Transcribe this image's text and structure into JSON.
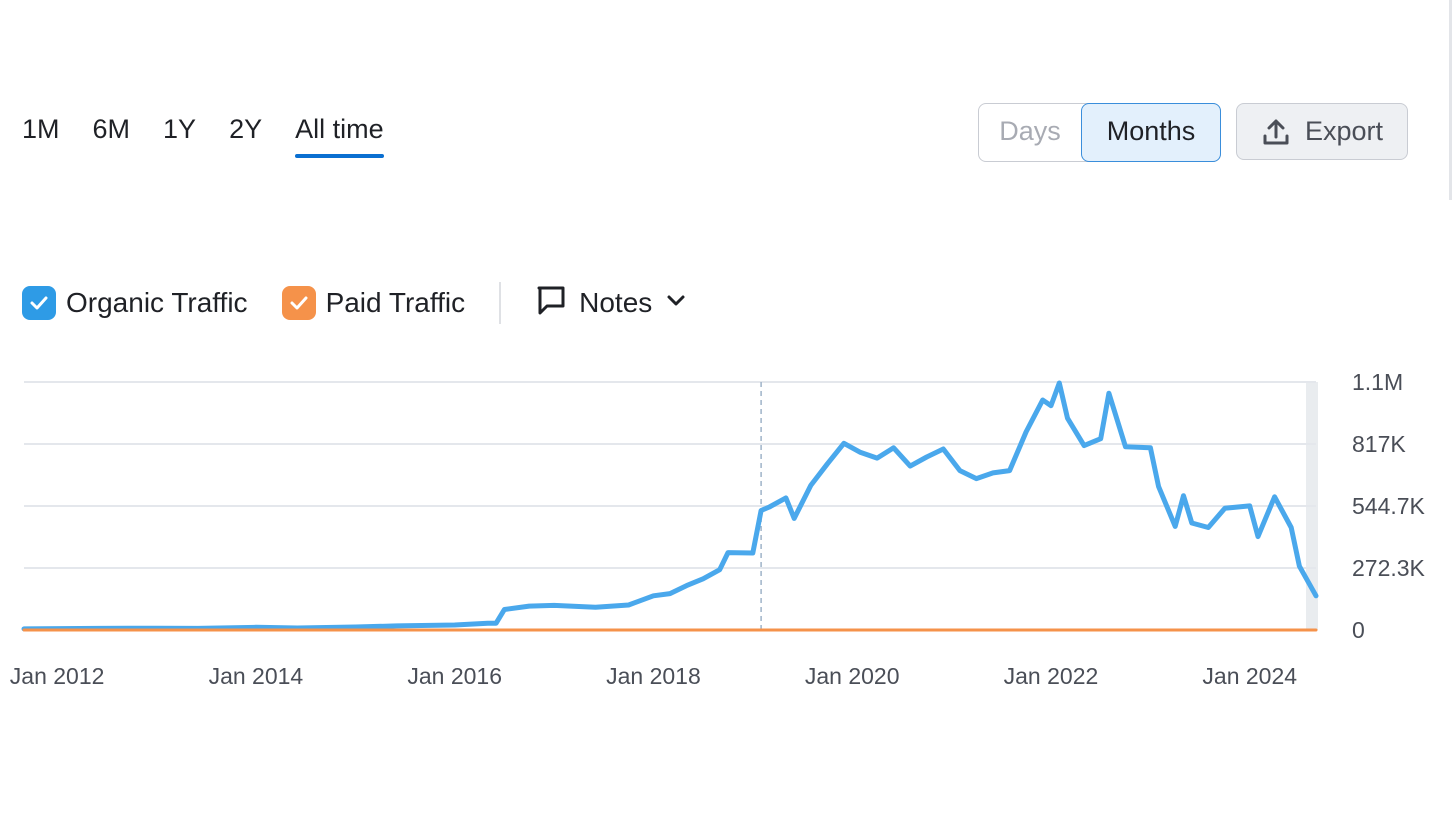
{
  "range_tabs": [
    "1M",
    "6M",
    "1Y",
    "2Y",
    "All time"
  ],
  "active_range": "All time",
  "granularity": {
    "days_label": "Days",
    "months_label": "Months",
    "selected": "Months"
  },
  "export_label": "Export",
  "legend": {
    "organic_label": "Organic Traffic",
    "paid_label": "Paid Traffic",
    "notes_label": "Notes"
  },
  "colors": {
    "organic": "#4aa8ec",
    "paid": "#f5924a",
    "accent": "#0a6fd1",
    "grid": "#e4e7ec"
  },
  "icons": {
    "export": "upload-icon",
    "notes": "comment-icon",
    "dropdown": "chevron-down-icon",
    "checkbox": "check-icon"
  },
  "chart_data": {
    "type": "line",
    "ylim": [
      0,
      1089200
    ],
    "y_ticks": [
      {
        "value": 0,
        "label": "0"
      },
      {
        "value": 272300,
        "label": "272.3K"
      },
      {
        "value": 544700,
        "label": "544.7K"
      },
      {
        "value": 817000,
        "label": "817K"
      },
      {
        "value": 1089200,
        "label": "1.1M"
      }
    ],
    "x_ticks": [
      "Jan 2012",
      "Jan 2014",
      "Jan 2016",
      "Jan 2018",
      "Jan 2020",
      "Jan 2022",
      "Jan 2024"
    ],
    "x_range": [
      "2011-09",
      "2024-09"
    ],
    "marker_date": "2019-02",
    "legend_position": "top-left",
    "grid": true,
    "series": [
      {
        "name": "Organic Traffic",
        "points": [
          [
            "2011-09",
            5000
          ],
          [
            "2012-06",
            7000
          ],
          [
            "2013-01",
            8000
          ],
          [
            "2013-06",
            7000
          ],
          [
            "2014-01",
            12000
          ],
          [
            "2014-06",
            9000
          ],
          [
            "2015-01",
            13000
          ],
          [
            "2015-06",
            18000
          ],
          [
            "2016-01",
            22000
          ],
          [
            "2016-05",
            30000
          ],
          [
            "2016-06",
            30000
          ],
          [
            "2016-07",
            90000
          ],
          [
            "2016-10",
            105000
          ],
          [
            "2017-01",
            108000
          ],
          [
            "2017-06",
            100000
          ],
          [
            "2017-10",
            110000
          ],
          [
            "2018-01",
            150000
          ],
          [
            "2018-03",
            160000
          ],
          [
            "2018-05",
            195000
          ],
          [
            "2018-07",
            225000
          ],
          [
            "2018-09",
            265000
          ],
          [
            "2018-10",
            340000
          ],
          [
            "2019-01",
            338000
          ],
          [
            "2019-02",
            525000
          ],
          [
            "2019-03",
            540000
          ],
          [
            "2019-05",
            580000
          ],
          [
            "2019-06",
            490000
          ],
          [
            "2019-08",
            635000
          ],
          [
            "2019-10",
            730000
          ],
          [
            "2019-12",
            820000
          ],
          [
            "2020-02",
            780000
          ],
          [
            "2020-04",
            755000
          ],
          [
            "2020-06",
            800000
          ],
          [
            "2020-08",
            720000
          ],
          [
            "2020-10",
            760000
          ],
          [
            "2020-12",
            795000
          ],
          [
            "2021-02",
            700000
          ],
          [
            "2021-04",
            665000
          ],
          [
            "2021-06",
            690000
          ],
          [
            "2021-08",
            700000
          ],
          [
            "2021-10",
            870000
          ],
          [
            "2021-12",
            1010000
          ],
          [
            "2022-01",
            985000
          ],
          [
            "2022-02",
            1085000
          ],
          [
            "2022-03",
            930000
          ],
          [
            "2022-05",
            810000
          ],
          [
            "2022-07",
            840000
          ],
          [
            "2022-08",
            1040000
          ],
          [
            "2022-10",
            805000
          ],
          [
            "2023-01",
            800000
          ],
          [
            "2023-02",
            630000
          ],
          [
            "2023-04",
            455000
          ],
          [
            "2023-05",
            590000
          ],
          [
            "2023-06",
            470000
          ],
          [
            "2023-08",
            450000
          ],
          [
            "2023-10",
            535000
          ],
          [
            "2024-01",
            545000
          ],
          [
            "2024-02",
            410000
          ],
          [
            "2024-04",
            585000
          ],
          [
            "2024-06",
            450000
          ],
          [
            "2024-07",
            280000
          ],
          [
            "2024-09",
            150000
          ]
        ]
      },
      {
        "name": "Paid Traffic",
        "points": [
          [
            "2011-09",
            0
          ],
          [
            "2024-09",
            0
          ]
        ]
      }
    ]
  }
}
